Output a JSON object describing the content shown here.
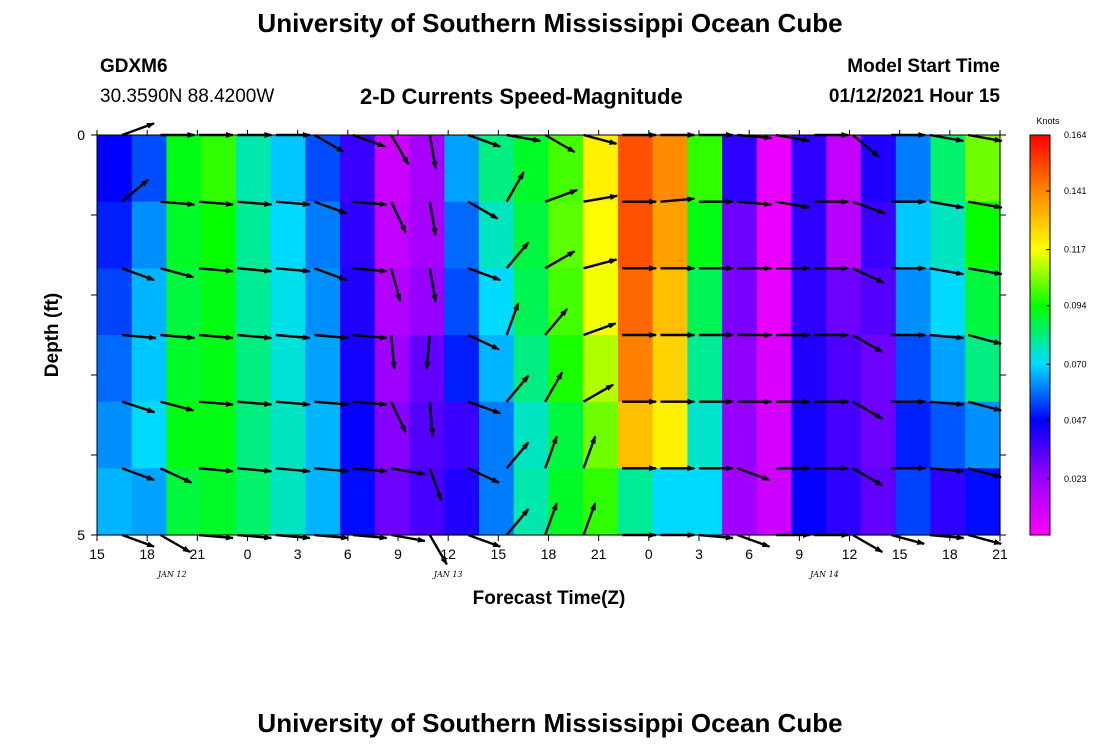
{
  "header": {
    "title": "University of Southern Mississippi Ocean Cube",
    "station_id": "GDXM6",
    "station_coords": "30.3590N 88.4200W",
    "chart_title": "2-D Currents Speed-Magnitude",
    "model_start_label": "Model Start Time",
    "model_start_value": "01/12/2021 Hour 15"
  },
  "footer": {
    "title": "University of Southern Mississippi Ocean Cube"
  },
  "chart_data": {
    "type": "heatmap",
    "title": "2-D Currents Speed-Magnitude",
    "xlabel": "Forecast Time(Z)",
    "ylabel": "Depth (ft)",
    "x_hours": [
      0,
      54
    ],
    "x_tick_labels": [
      "15",
      "18",
      "21",
      "0",
      "3",
      "6",
      "9",
      "12",
      "15",
      "18",
      "21",
      "0",
      "3",
      "6",
      "9",
      "12",
      "15",
      "18",
      "21"
    ],
    "date_labels": [
      {
        "label": "JAN  12",
        "hour": 4.5
      },
      {
        "label": "JAN  13",
        "hour": 21
      },
      {
        "label": "JAN  14",
        "hour": 43.5
      }
    ],
    "y_range_ft": [
      0,
      5
    ],
    "y_tick_labels": [
      "0",
      "5"
    ],
    "depth_rows_ft": [
      0,
      1,
      2,
      3,
      4,
      5
    ],
    "colorbar": {
      "unit": "Knots",
      "min": 0.0,
      "max": 0.164,
      "tick_labels": [
        "0.164",
        "0.141",
        "0.117",
        "0.094",
        "0.070",
        "0.047",
        "0.023"
      ],
      "colors": [
        "#ff00ff",
        "#9900ff",
        "#0000ff",
        "#00ddff",
        "#00ff00",
        "#ffff00",
        "#ff8800",
        "#ff0000"
      ]
    },
    "speed_by_column": [
      [
        0.047,
        0.05,
        0.054,
        0.058,
        0.062,
        0.066
      ],
      [
        0.055,
        0.062,
        0.066,
        0.068,
        0.07,
        0.064
      ],
      [
        0.092,
        0.09,
        0.088,
        0.09,
        0.092,
        0.088
      ],
      [
        0.098,
        0.094,
        0.092,
        0.092,
        0.092,
        0.09
      ],
      [
        0.078,
        0.08,
        0.08,
        0.082,
        0.082,
        0.084
      ],
      [
        0.068,
        0.07,
        0.072,
        0.074,
        0.076,
        0.076
      ],
      [
        0.055,
        0.06,
        0.062,
        0.064,
        0.066,
        0.066
      ],
      [
        0.038,
        0.04,
        0.042,
        0.044,
        0.046,
        0.048
      ],
      [
        0.012,
        0.014,
        0.018,
        0.022,
        0.026,
        0.03
      ],
      [
        0.02,
        0.02,
        0.024,
        0.032,
        0.034,
        0.036
      ],
      [
        0.064,
        0.058,
        0.055,
        0.05,
        0.038,
        0.042
      ],
      [
        0.082,
        0.076,
        0.07,
        0.066,
        0.06,
        0.06
      ],
      [
        0.09,
        0.088,
        0.086,
        0.082,
        0.076,
        0.078
      ],
      [
        0.1,
        0.102,
        0.1,
        0.096,
        0.088,
        0.09
      ],
      [
        0.12,
        0.118,
        0.116,
        0.11,
        0.104,
        0.098
      ],
      [
        0.15,
        0.15,
        0.146,
        0.142,
        0.13,
        0.08
      ],
      [
        0.14,
        0.136,
        0.13,
        0.126,
        0.12,
        0.07
      ],
      [
        0.098,
        0.092,
        0.086,
        0.08,
        0.075,
        0.07
      ],
      [
        0.04,
        0.03,
        0.028,
        0.025,
        0.024,
        0.022
      ],
      [
        0.005,
        0.005,
        0.006,
        0.008,
        0.01,
        0.012
      ],
      [
        0.04,
        0.04,
        0.04,
        0.042,
        0.044,
        0.046
      ],
      [
        0.014,
        0.016,
        0.03,
        0.035,
        0.036,
        0.04
      ],
      [
        0.042,
        0.038,
        0.034,
        0.03,
        0.03,
        0.032
      ],
      [
        0.06,
        0.068,
        0.062,
        0.055,
        0.05,
        0.054
      ],
      [
        0.084,
        0.076,
        0.07,
        0.064,
        0.056,
        0.04
      ],
      [
        0.104,
        0.094,
        0.088,
        0.082,
        0.062,
        0.048
      ]
    ],
    "arrows": [
      [
        20,
        40,
        -20,
        -5,
        -18,
        -20,
        -20
      ],
      [
        0,
        -5,
        -15,
        -5,
        -15,
        -25,
        -30
      ],
      [
        0,
        -5,
        -5,
        -5,
        -5,
        -5,
        -5
      ],
      [
        0,
        -5,
        -5,
        -5,
        -5,
        -5,
        -5
      ],
      [
        0,
        -5,
        -5,
        -5,
        -5,
        -5,
        -5
      ],
      [
        -30,
        -20,
        -20,
        -5,
        -5,
        -5,
        -5
      ],
      [
        -20,
        -5,
        -5,
        -5,
        -5,
        -5,
        -5
      ],
      [
        -60,
        -65,
        -75,
        -85,
        -65,
        -10,
        -10
      ],
      [
        -80,
        -80,
        -80,
        -95,
        -85,
        -70,
        -60
      ],
      [
        -20,
        -30,
        -20,
        -25,
        -20,
        -25,
        -20
      ],
      [
        -10,
        60,
        50,
        70,
        50,
        50,
        50
      ],
      [
        -30,
        20,
        30,
        50,
        60,
        70,
        70
      ],
      [
        -15,
        10,
        15,
        20,
        30,
        70,
        70
      ],
      [
        0,
        0,
        0,
        0,
        0,
        0,
        0
      ],
      [
        0,
        5,
        0,
        0,
        0,
        0,
        0
      ],
      [
        0,
        0,
        0,
        0,
        0,
        0,
        -5
      ],
      [
        -5,
        -5,
        0,
        0,
        0,
        -20,
        -20
      ],
      [
        -10,
        -10,
        0,
        0,
        0,
        0,
        0
      ],
      [
        0,
        0,
        0,
        0,
        0,
        0,
        0
      ],
      [
        -40,
        -20,
        -25,
        -30,
        -30,
        -30,
        -30
      ],
      [
        0,
        0,
        0,
        0,
        0,
        0,
        -15
      ],
      [
        -10,
        -10,
        -10,
        -5,
        -5,
        -5,
        -5
      ],
      [
        -10,
        -10,
        -10,
        -15,
        -15,
        -15,
        -15
      ]
    ]
  }
}
